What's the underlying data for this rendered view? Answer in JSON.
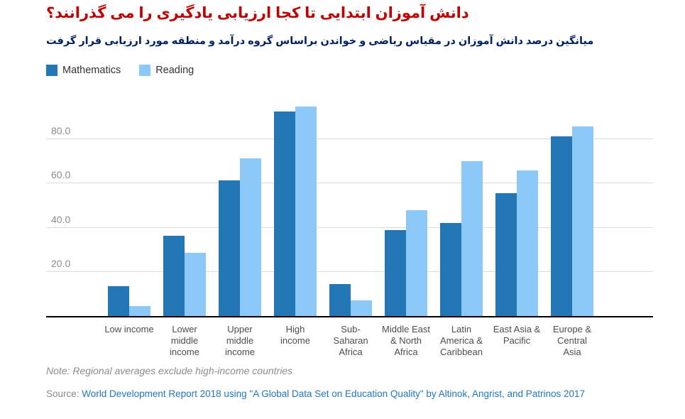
{
  "title": "دانش آموزان ابتدایی تا کجا ارزیابی یادگیری را می گذرانند؟",
  "subtitle": "میانگین درصد دانش آموزان در مقیاس ریاضی و خواندن براساس گروه درآمد و منطقه مورد ارزیابی قرار گرفت",
  "legend": [
    {
      "label": "Mathematics",
      "color": "#2277b4"
    },
    {
      "label": "Reading",
      "color": "#8dc9f8"
    }
  ],
  "note": "Note: Regional averages exclude high-income countries",
  "source": {
    "label": "Source:",
    "link_text": "World Development Report 2018 using \"A Global Data Set on Education Quality\" by Altinok, Angrist, and Patrinos 2017"
  },
  "colors": {
    "title_red": "#c00000",
    "subtitle_navy": "#002060",
    "mathematics_blue": "#2277b4",
    "reading_light_blue": "#8dc9f8",
    "gridline_gray": "#dcdcdc",
    "axis_black": "#000000",
    "tick_gray": "#8c8c8c",
    "source_link_blue": "#2178be"
  },
  "chart_data": {
    "type": "bar",
    "title": "دانش آموزان ابتدایی تا کجا ارزیابی یادگیری را می گذرانند؟",
    "subtitle": "میانگین درصد دانش آموزان در مقیاس ریاضی و خواندن براساس گروه درآمد و منطقه مورد ارزیابی قرار گرفت",
    "categories": [
      "Low income",
      "Lower middle income",
      "Upper middle income",
      "High income",
      "Sub-Saharan Africa",
      "Middle East & North Africa",
      "Latin America & Caribbean",
      "East Asia & Pacific",
      "Europe & Central Asia"
    ],
    "series": [
      {
        "name": "Mathematics",
        "color": "#2277b4",
        "values": [
          13.5,
          36.5,
          61.5,
          92.5,
          14.5,
          39,
          42,
          55.5,
          81.5
        ]
      },
      {
        "name": "Reading",
        "color": "#8dc9f8",
        "values": [
          4.5,
          28.5,
          71.5,
          95,
          7,
          48,
          70,
          66,
          86
        ]
      }
    ],
    "xlabel": "",
    "ylabel": "",
    "ylim": [
      0,
      100
    ],
    "yticks": [
      20,
      40,
      60,
      80
    ],
    "ytick_labels": [
      "20.0",
      "40.0",
      "60.0",
      "80.0"
    ],
    "grid": true,
    "legend_position": "top-left",
    "note": "Note: Regional averages exclude high-income countries",
    "source": "Source: World Development Report 2018 using \"A Global Data Set on Education Quality\" by Altinok, Angrist, and Patrinos 2017"
  }
}
